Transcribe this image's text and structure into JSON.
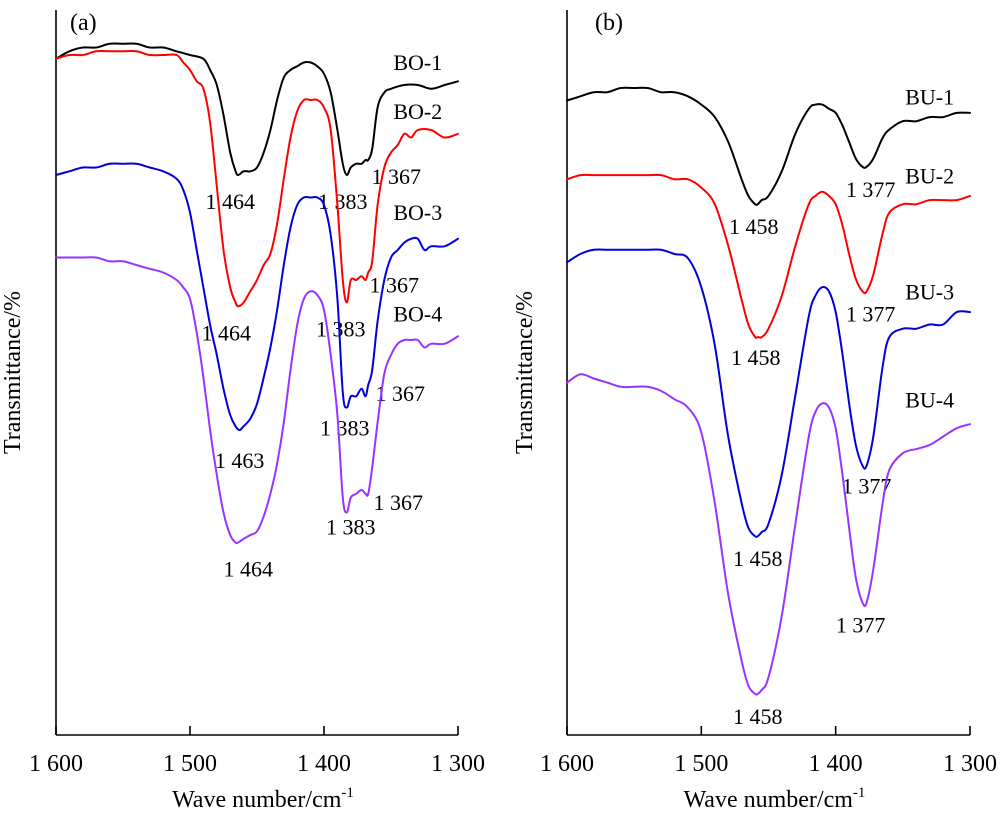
{
  "chart_data": [
    {
      "type": "line",
      "panel_label": "(a)",
      "xlabel": "Wave number/cm",
      "xlabel_sup": "-1",
      "ylabel": "Transmittance/%",
      "xlim": [
        1600,
        1300
      ],
      "x_reversed": true,
      "xticks": [
        1600,
        1500,
        1400,
        1300
      ],
      "xtick_labels": [
        "1 600",
        "1 500",
        "1 400",
        "1 300"
      ],
      "grid": false,
      "series": [
        {
          "name": "BO-1",
          "color": "#000000",
          "x": [
            1600,
            1590,
            1580,
            1570,
            1560,
            1550,
            1540,
            1530,
            1520,
            1510,
            1500,
            1490,
            1485,
            1480,
            1475,
            1470,
            1466,
            1464,
            1460,
            1455,
            1450,
            1445,
            1440,
            1435,
            1430,
            1425,
            1420,
            1415,
            1410,
            1405,
            1400,
            1395,
            1390,
            1386,
            1383,
            1380,
            1376,
            1372,
            1369,
            1367,
            1364,
            1360,
            1355,
            1350,
            1340,
            1330,
            1320,
            1310,
            1300
          ],
          "y": [
            0.01,
            -0.01,
            -0.02,
            -0.02,
            -0.03,
            -0.03,
            -0.03,
            -0.02,
            -0.02,
            -0.01,
            0.0,
            0.01,
            0.04,
            0.08,
            0.16,
            0.26,
            0.31,
            0.32,
            0.31,
            0.31,
            0.3,
            0.26,
            0.2,
            0.12,
            0.06,
            0.04,
            0.03,
            0.02,
            0.02,
            0.03,
            0.05,
            0.1,
            0.2,
            0.29,
            0.32,
            0.3,
            0.29,
            0.29,
            0.28,
            0.28,
            0.25,
            0.14,
            0.1,
            0.09,
            0.08,
            0.08,
            0.09,
            0.08,
            0.07
          ],
          "peaks": [
            {
              "x": 1464,
              "label": "1 464",
              "dx": -8,
              "dy": 34
            },
            {
              "x": 1383,
              "label": "1 383",
              "dx": -4,
              "dy": 34
            },
            {
              "x": 1367,
              "label": "1 367",
              "dx": 28,
              "dy": 24
            }
          ]
        },
        {
          "name": "BO-2",
          "color": "#ff0000",
          "x": [
            1600,
            1590,
            1580,
            1570,
            1560,
            1550,
            1540,
            1530,
            1520,
            1510,
            1505,
            1500,
            1495,
            1490,
            1485,
            1480,
            1475,
            1470,
            1466,
            1464,
            1460,
            1455,
            1450,
            1445,
            1440,
            1435,
            1430,
            1425,
            1420,
            1415,
            1410,
            1405,
            1400,
            1395,
            1390,
            1386,
            1383,
            1380,
            1376,
            1372,
            1369,
            1367,
            1364,
            1360,
            1355,
            1350,
            1345,
            1340,
            1335,
            1330,
            1320,
            1310,
            1300
          ],
          "y": [
            0.01,
            0.0,
            0.0,
            -0.01,
            -0.01,
            -0.01,
            -0.01,
            0.0,
            0.0,
            0.0,
            0.02,
            0.04,
            0.07,
            0.09,
            0.18,
            0.35,
            0.52,
            0.62,
            0.66,
            0.67,
            0.66,
            0.63,
            0.6,
            0.56,
            0.53,
            0.45,
            0.33,
            0.22,
            0.15,
            0.12,
            0.12,
            0.12,
            0.14,
            0.2,
            0.4,
            0.6,
            0.66,
            0.6,
            0.6,
            0.59,
            0.6,
            0.58,
            0.55,
            0.4,
            0.3,
            0.26,
            0.24,
            0.21,
            0.22,
            0.2,
            0.2,
            0.22,
            0.21
          ],
          "peaks": [
            {
              "x": 1464,
              "label": "1 464",
              "dx": -12,
              "dy": 34
            },
            {
              "x": 1383,
              "label": "1 383",
              "dx": -6,
              "dy": 34
            },
            {
              "x": 1367,
              "label": "1 367",
              "dx": 26,
              "dy": 20
            }
          ]
        },
        {
          "name": "BO-3",
          "color": "#0000dd",
          "x": [
            1600,
            1590,
            1580,
            1570,
            1560,
            1550,
            1540,
            1530,
            1520,
            1510,
            1505,
            1500,
            1495,
            1490,
            1485,
            1480,
            1475,
            1470,
            1466,
            1463,
            1460,
            1455,
            1450,
            1445,
            1440,
            1435,
            1430,
            1425,
            1420,
            1415,
            1410,
            1405,
            1400,
            1395,
            1390,
            1386,
            1383,
            1380,
            1376,
            1372,
            1369,
            1367,
            1364,
            1360,
            1355,
            1350,
            1345,
            1340,
            1335,
            1330,
            1325,
            1320,
            1310,
            1300
          ],
          "y": [
            0.32,
            0.31,
            0.3,
            0.3,
            0.29,
            0.29,
            0.29,
            0.3,
            0.31,
            0.33,
            0.36,
            0.42,
            0.52,
            0.62,
            0.72,
            0.8,
            0.89,
            0.96,
            0.99,
            1.0,
            0.99,
            0.97,
            0.93,
            0.86,
            0.78,
            0.68,
            0.56,
            0.46,
            0.4,
            0.38,
            0.38,
            0.38,
            0.4,
            0.48,
            0.65,
            0.9,
            0.94,
            0.91,
            0.91,
            0.89,
            0.91,
            0.88,
            0.84,
            0.71,
            0.6,
            0.54,
            0.52,
            0.5,
            0.49,
            0.49,
            0.52,
            0.51,
            0.51,
            0.49
          ],
          "peaks": [
            {
              "x": 1463,
              "label": "1 463",
              "dx": 0,
              "dy": 38
            },
            {
              "x": 1383,
              "label": "1 383",
              "dx": -2,
              "dy": 28
            },
            {
              "x": 1367,
              "label": "1 367",
              "dx": 32,
              "dy": 16
            }
          ]
        },
        {
          "name": "BO-4",
          "color": "#9933ff",
          "x": [
            1600,
            1590,
            1580,
            1570,
            1560,
            1550,
            1540,
            1530,
            1520,
            1510,
            1505,
            1500,
            1495,
            1490,
            1485,
            1480,
            1475,
            1470,
            1466,
            1464,
            1460,
            1455,
            1450,
            1445,
            1440,
            1435,
            1430,
            1425,
            1420,
            1415,
            1410,
            1405,
            1400,
            1395,
            1390,
            1386,
            1383,
            1380,
            1376,
            1372,
            1369,
            1367,
            1364,
            1360,
            1355,
            1350,
            1345,
            1340,
            1335,
            1330,
            1325,
            1320,
            1310,
            1300
          ],
          "y": [
            0.54,
            0.54,
            0.54,
            0.54,
            0.55,
            0.55,
            0.56,
            0.57,
            0.58,
            0.6,
            0.62,
            0.65,
            0.74,
            0.86,
            1.0,
            1.12,
            1.22,
            1.28,
            1.3,
            1.3,
            1.29,
            1.28,
            1.27,
            1.23,
            1.17,
            1.09,
            0.98,
            0.84,
            0.72,
            0.65,
            0.63,
            0.64,
            0.68,
            0.8,
            0.96,
            1.18,
            1.22,
            1.18,
            1.17,
            1.16,
            1.17,
            1.17,
            1.1,
            0.98,
            0.85,
            0.8,
            0.77,
            0.76,
            0.76,
            0.76,
            0.78,
            0.77,
            0.77,
            0.75
          ],
          "peaks": [
            {
              "x": 1464,
              "label": "1 464",
              "dx": 10,
              "dy": 34
            },
            {
              "x": 1383,
              "label": "1 383",
              "dx": 4,
              "dy": 22
            },
            {
              "x": 1367,
              "label": "1 367",
              "dx": 30,
              "dy": 16
            }
          ]
        }
      ],
      "series_labels": [
        {
          "text": "BO-1",
          "x": 1330,
          "y": 0.04
        },
        {
          "text": "BO-2",
          "x": 1330,
          "y": 0.17
        },
        {
          "text": "BO-3",
          "x": 1330,
          "y": 0.44
        },
        {
          "text": "BO-4",
          "x": 1330,
          "y": 0.71
        }
      ]
    },
    {
      "type": "line",
      "panel_label": "(b)",
      "xlabel": "Wave number/cm",
      "xlabel_sup": "-1",
      "ylabel": "Transmittance/%",
      "xlim": [
        1600,
        1300
      ],
      "x_reversed": true,
      "xticks": [
        1600,
        1500,
        1400,
        1300
      ],
      "xtick_labels": [
        "1 600",
        "1 500",
        "1 400",
        "1 300"
      ],
      "grid": false,
      "series": [
        {
          "name": "BU-1",
          "color": "#000000",
          "x": [
            1600,
            1590,
            1580,
            1570,
            1560,
            1550,
            1540,
            1530,
            1520,
            1510,
            1500,
            1490,
            1480,
            1470,
            1465,
            1460,
            1458,
            1455,
            1450,
            1440,
            1430,
            1420,
            1415,
            1410,
            1405,
            1400,
            1395,
            1390,
            1385,
            1380,
            1377,
            1372,
            1365,
            1360,
            1350,
            1340,
            1330,
            1320,
            1310,
            1300
          ],
          "y": [
            0.03,
            0.02,
            0.01,
            0.01,
            0.0,
            0.0,
            0.0,
            0.01,
            0.01,
            0.02,
            0.04,
            0.07,
            0.13,
            0.22,
            0.26,
            0.28,
            0.28,
            0.27,
            0.26,
            0.2,
            0.11,
            0.05,
            0.04,
            0.04,
            0.05,
            0.06,
            0.09,
            0.13,
            0.17,
            0.19,
            0.19,
            0.17,
            0.12,
            0.1,
            0.08,
            0.08,
            0.07,
            0.07,
            0.06,
            0.06
          ],
          "peaks": [
            {
              "x": 1458,
              "label": "1 458",
              "dx": -4,
              "dy": 30
            },
            {
              "x": 1377,
              "label": "1 377",
              "dx": 4,
              "dy": 30
            }
          ]
        },
        {
          "name": "BU-2",
          "color": "#ff0000",
          "x": [
            1600,
            1590,
            1580,
            1570,
            1560,
            1550,
            1540,
            1530,
            1520,
            1510,
            1500,
            1490,
            1480,
            1470,
            1465,
            1460,
            1458,
            1455,
            1450,
            1440,
            1430,
            1420,
            1415,
            1410,
            1405,
            1400,
            1395,
            1390,
            1385,
            1380,
            1377,
            1372,
            1365,
            1360,
            1350,
            1340,
            1330,
            1320,
            1310,
            1300
          ],
          "y": [
            0.22,
            0.21,
            0.21,
            0.21,
            0.21,
            0.21,
            0.21,
            0.21,
            0.22,
            0.22,
            0.24,
            0.28,
            0.38,
            0.51,
            0.57,
            0.6,
            0.6,
            0.6,
            0.58,
            0.5,
            0.38,
            0.28,
            0.26,
            0.25,
            0.26,
            0.28,
            0.33,
            0.4,
            0.46,
            0.49,
            0.49,
            0.45,
            0.35,
            0.3,
            0.28,
            0.28,
            0.27,
            0.27,
            0.27,
            0.26
          ],
          "peaks": [
            {
              "x": 1458,
              "label": "1 458",
              "dx": -2,
              "dy": 28
            },
            {
              "x": 1377,
              "label": "1 377",
              "dx": 4,
              "dy": 30
            }
          ]
        },
        {
          "name": "BU-3",
          "color": "#0000dd",
          "x": [
            1600,
            1590,
            1580,
            1570,
            1560,
            1550,
            1540,
            1530,
            1520,
            1510,
            1500,
            1490,
            1480,
            1470,
            1465,
            1460,
            1458,
            1455,
            1450,
            1440,
            1430,
            1420,
            1415,
            1410,
            1405,
            1400,
            1395,
            1390,
            1385,
            1380,
            1377,
            1372,
            1365,
            1360,
            1350,
            1340,
            1330,
            1320,
            1310,
            1300
          ],
          "y": [
            0.42,
            0.4,
            0.39,
            0.39,
            0.39,
            0.39,
            0.39,
            0.39,
            0.4,
            0.41,
            0.48,
            0.62,
            0.84,
            1.0,
            1.06,
            1.08,
            1.08,
            1.07,
            1.05,
            0.93,
            0.74,
            0.55,
            0.5,
            0.48,
            0.49,
            0.54,
            0.64,
            0.76,
            0.86,
            0.91,
            0.91,
            0.84,
            0.67,
            0.6,
            0.58,
            0.58,
            0.57,
            0.57,
            0.54,
            0.54
          ],
          "peaks": [
            {
              "x": 1458,
              "label": "1 458",
              "dx": 0,
              "dy": 30
            },
            {
              "x": 1377,
              "label": "1 377",
              "dx": 0,
              "dy": 28
            }
          ]
        },
        {
          "name": "BU-4",
          "color": "#9933ff",
          "x": [
            1600,
            1590,
            1580,
            1570,
            1560,
            1550,
            1540,
            1530,
            1520,
            1510,
            1500,
            1490,
            1480,
            1470,
            1465,
            1460,
            1458,
            1455,
            1450,
            1440,
            1430,
            1420,
            1415,
            1410,
            1405,
            1400,
            1395,
            1390,
            1385,
            1380,
            1377,
            1372,
            1365,
            1360,
            1350,
            1340,
            1330,
            1320,
            1310,
            1300
          ],
          "y": [
            0.71,
            0.69,
            0.7,
            0.71,
            0.72,
            0.72,
            0.72,
            0.73,
            0.75,
            0.77,
            0.83,
            1.0,
            1.22,
            1.38,
            1.44,
            1.46,
            1.46,
            1.45,
            1.42,
            1.27,
            1.05,
            0.84,
            0.78,
            0.76,
            0.77,
            0.82,
            0.93,
            1.06,
            1.18,
            1.24,
            1.24,
            1.16,
            1.0,
            0.92,
            0.88,
            0.87,
            0.86,
            0.84,
            0.82,
            0.81
          ],
          "peaks": [
            {
              "x": 1458,
              "label": "1 458",
              "dx": 0,
              "dy": 30
            },
            {
              "x": 1377,
              "label": "1 377",
              "dx": -6,
              "dy": 30
            }
          ]
        }
      ],
      "series_labels": [
        {
          "text": "BU-1",
          "x": 1330,
          "y": 0.04
        },
        {
          "text": "BU-2",
          "x": 1330,
          "y": 0.23
        },
        {
          "text": "BU-3",
          "x": 1330,
          "y": 0.51
        },
        {
          "text": "BU-4",
          "x": 1330,
          "y": 0.77
        }
      ]
    }
  ]
}
